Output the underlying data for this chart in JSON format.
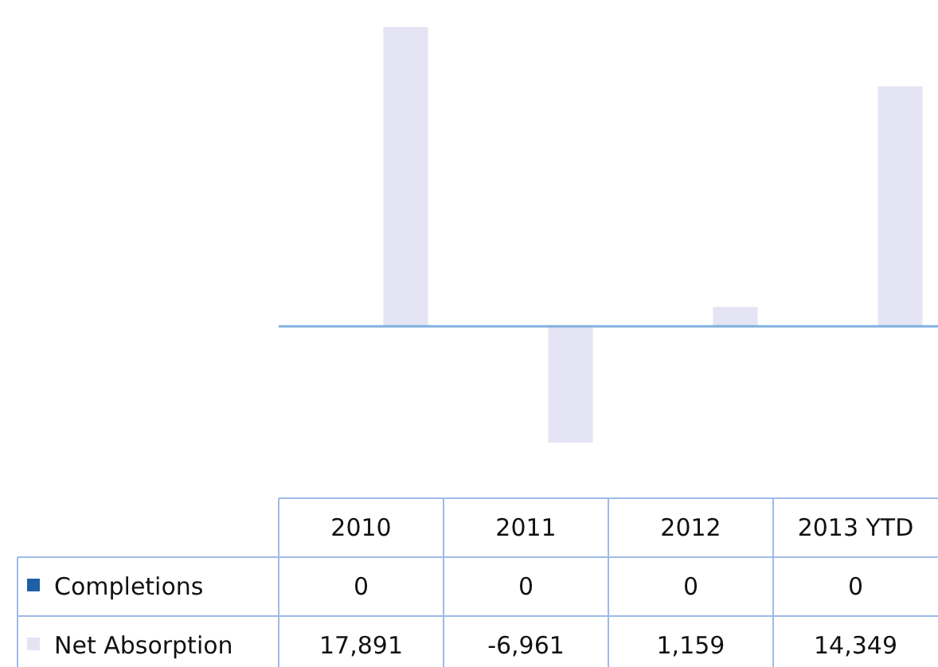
{
  "chart_data": {
    "type": "bar",
    "categories": [
      "2010",
      "2011",
      "2012",
      "2013 YTD"
    ],
    "series": [
      {
        "name": "Completions",
        "color": "#1f5fa8",
        "values": [
          0,
          0,
          0,
          0
        ],
        "value_labels": [
          "0",
          "0",
          "0",
          "0"
        ]
      },
      {
        "name": "Net Absorption",
        "color": "#e4e4f4",
        "values": [
          17891,
          -6961,
          1159,
          14349
        ],
        "value_labels": [
          "17,891",
          "-6,961",
          "1,159",
          "14,349"
        ]
      }
    ],
    "ref_lines": [
      {
        "axis": "y",
        "value": 0,
        "color": "#7fb0e0"
      }
    ],
    "legend": "bottom left",
    "tick_labels": "x"
  }
}
